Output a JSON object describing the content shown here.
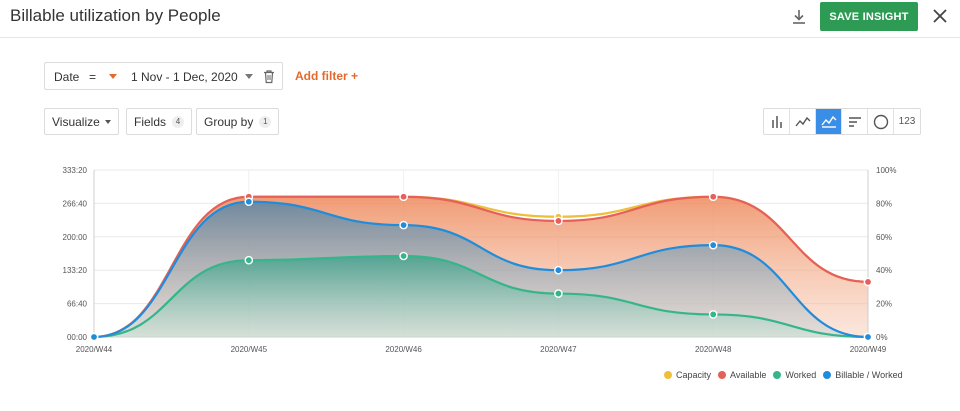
{
  "header": {
    "title": "Billable utilization by People",
    "save_label": "SAVE INSIGHT"
  },
  "filter": {
    "field": "Date",
    "operator": "=",
    "value": "1 Nov - 1 Dec, 2020",
    "add_label": "Add filter +"
  },
  "toolbar": {
    "visualize_label": "Visualize",
    "fields_label": "Fields",
    "fields_count": "4",
    "groupby_label": "Group by",
    "groupby_count": "1",
    "number_view_label": "123"
  },
  "colors": {
    "accent": "#e36a2e",
    "save": "#2e9b54",
    "active_view": "#3b8ee5"
  },
  "chart_data": {
    "type": "area",
    "categories": [
      "2020/W44",
      "2020/W45",
      "2020/W46",
      "2020/W47",
      "2020/W48",
      "2020/W49"
    ],
    "y_left_ticks": [
      "00:00",
      "66:40",
      "133:20",
      "200:00",
      "266:40",
      "333:20"
    ],
    "y_right_ticks": [
      "0%",
      "20%",
      "40%",
      "60%",
      "80%",
      "100%"
    ],
    "ylim": [
      0,
      20000
    ],
    "y_right_lim": [
      0,
      100
    ],
    "grid": true,
    "legend_position": "bottom-right",
    "series": [
      {
        "name": "Capacity",
        "color": "#f0bf3a",
        "axis": "left",
        "values": [
          0,
          16800,
          16800,
          14400,
          16800,
          6600
        ]
      },
      {
        "name": "Available",
        "color": "#e5605a",
        "axis": "left",
        "values": [
          0,
          16800,
          16800,
          13900,
          16800,
          6600
        ]
      },
      {
        "name": "Worked",
        "color": "#35b58a",
        "axis": "left",
        "values": [
          0,
          9200,
          9700,
          5200,
          2700,
          0
        ]
      },
      {
        "name": "Billable / Worked",
        "color": "#1f8ddb",
        "axis": "right",
        "values": [
          0,
          81,
          67,
          40,
          55,
          0
        ]
      }
    ]
  }
}
